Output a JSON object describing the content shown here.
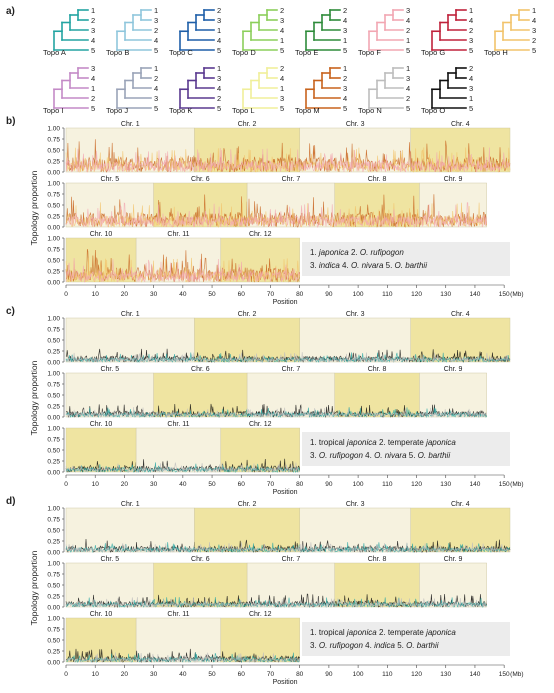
{
  "panel_labels": [
    "a)",
    "b)",
    "c)",
    "d)"
  ],
  "topologies": [
    {
      "label": "Topo A",
      "color": "#23a4a2",
      "leaves": [
        "1",
        "2",
        "3",
        "4",
        "5"
      ]
    },
    {
      "label": "Topo B",
      "color": "#8fc6dc",
      "leaves": [
        "1",
        "3",
        "2",
        "4",
        "5"
      ]
    },
    {
      "label": "Topo C",
      "color": "#1f5fa8",
      "leaves": [
        "2",
        "3",
        "1",
        "4",
        "5"
      ]
    },
    {
      "label": "Topo D",
      "color": "#8ccf5b",
      "leaves": [
        "2",
        "3",
        "4",
        "1",
        "5"
      ]
    },
    {
      "label": "Topo E",
      "color": "#2e8b3a",
      "leaves": [
        "2",
        "4",
        "3",
        "1",
        "5"
      ]
    },
    {
      "label": "Topo F",
      "color": "#f2a7b2",
      "leaves": [
        "3",
        "4",
        "2",
        "1",
        "5"
      ]
    },
    {
      "label": "Topo G",
      "color": "#c0223b",
      "leaves": [
        "1",
        "4",
        "2",
        "3",
        "5"
      ]
    },
    {
      "label": "Topo H",
      "color": "#f2c36b",
      "leaves": [
        "1",
        "4",
        "3",
        "2",
        "5"
      ]
    },
    {
      "label": "Topo I",
      "color": "#c48ac7",
      "leaves": [
        "3",
        "4",
        "1",
        "2",
        "5"
      ]
    },
    {
      "label": "Topo J",
      "color": "#9aa3b8",
      "leaves": [
        "1",
        "2",
        "4",
        "3",
        "5"
      ]
    },
    {
      "label": "Topo K",
      "color": "#5a3a8f",
      "leaves": [
        "1",
        "3",
        "4",
        "2",
        "5"
      ]
    },
    {
      "label": "Topo L",
      "color": "#f0ef9a",
      "leaves": [
        "2",
        "4",
        "1",
        "3",
        "5"
      ]
    },
    {
      "label": "Topo M",
      "color": "#c8631d",
      "leaves": [
        "1",
        "2",
        "3",
        "4",
        "5"
      ]
    },
    {
      "label": "Topo N",
      "color": "#bdbdbd",
      "leaves": [
        "1",
        "3",
        "4",
        "2",
        "5"
      ]
    },
    {
      "label": "Topo O",
      "color": "#111111",
      "leaves": [
        "2",
        "4",
        "3",
        "1",
        "5"
      ]
    }
  ],
  "axis": {
    "ylabel": "Topology proportion",
    "xlabel": "Position",
    "x_unit": "(Mb)",
    "x_ticks": [
      "0",
      "10",
      "20",
      "30",
      "40",
      "50",
      "60",
      "70",
      "80",
      "90",
      "100",
      "110",
      "120",
      "130",
      "140",
      "150"
    ],
    "y_ticks": [
      "0.00",
      "0.25",
      "0.50",
      "0.75",
      "1.00"
    ]
  },
  "chromosomes": [
    {
      "name": "Chr. 1",
      "length_mb": 44,
      "row": 0,
      "offset_mb": 0
    },
    {
      "name": "Chr. 2",
      "length_mb": 36,
      "row": 0,
      "offset_mb": 44
    },
    {
      "name": "Chr. 3",
      "length_mb": 38,
      "row": 0,
      "offset_mb": 80
    },
    {
      "name": "Chr. 4",
      "length_mb": 34,
      "row": 0,
      "offset_mb": 118
    },
    {
      "name": "Chr. 5",
      "length_mb": 30,
      "row": 1,
      "offset_mb": 0
    },
    {
      "name": "Chr. 6",
      "length_mb": 32,
      "row": 1,
      "offset_mb": 30
    },
    {
      "name": "Chr. 7",
      "length_mb": 30,
      "row": 1,
      "offset_mb": 62
    },
    {
      "name": "Chr. 8",
      "length_mb": 29,
      "row": 1,
      "offset_mb": 92
    },
    {
      "name": "Chr. 9",
      "length_mb": 23,
      "row": 1,
      "offset_mb": 121
    },
    {
      "name": "Chr. 10",
      "length_mb": 24,
      "row": 2,
      "offset_mb": 0
    },
    {
      "name": "Chr. 11",
      "length_mb": 29,
      "row": 2,
      "offset_mb": 24
    },
    {
      "name": "Chr. 12",
      "length_mb": 27,
      "row": 2,
      "offset_mb": 53
    }
  ],
  "colors": {
    "chr_odd": "#f6f2df",
    "chr_even": "#efe4a1",
    "legend_bg": "#ececec"
  },
  "chart_data": [
    {
      "panel": "b",
      "type": "area",
      "legend": [
        {
          "n": "1.",
          "name": "japonica"
        },
        {
          "n": "2.",
          "name": "O. rufipogon"
        },
        {
          "n": "3.",
          "name": "indica"
        },
        {
          "n": "4.",
          "name": "O. nivara"
        },
        {
          "n": "5.",
          "name": "O. barthii"
        }
      ],
      "dominant_topologies": [
        "Topo M",
        "Topo H",
        "Topo F"
      ],
      "typical_peak": 0.75,
      "xlim": [
        0,
        150
      ],
      "ylim": [
        0,
        1
      ]
    },
    {
      "panel": "c",
      "type": "area",
      "legend": [
        {
          "n": "1. tropical",
          "name": "japonica"
        },
        {
          "n": "2. temperate",
          "name": "japonica"
        },
        {
          "n": "3.",
          "name": "O. rufipogon"
        },
        {
          "n": "4.",
          "name": "O. nivara"
        },
        {
          "n": "5.",
          "name": "O. barthii"
        }
      ],
      "dominant_topologies": [
        "Topo O",
        "Topo A",
        "Topo N"
      ],
      "typical_peak": 0.3,
      "xlim": [
        0,
        150
      ],
      "ylim": [
        0,
        1
      ]
    },
    {
      "panel": "d",
      "type": "area",
      "legend": [
        {
          "n": "1. tropical",
          "name": "japonica"
        },
        {
          "n": "2. temperate",
          "name": "japonica"
        },
        {
          "n": "3.",
          "name": "O. rufipogon"
        },
        {
          "n": "4.",
          "name": "indica"
        },
        {
          "n": "5.",
          "name": "O. barthii"
        }
      ],
      "dominant_topologies": [
        "Topo O",
        "Topo A",
        "Topo N"
      ],
      "typical_peak": 0.3,
      "xlim": [
        0,
        150
      ],
      "ylim": [
        0,
        1
      ]
    }
  ]
}
